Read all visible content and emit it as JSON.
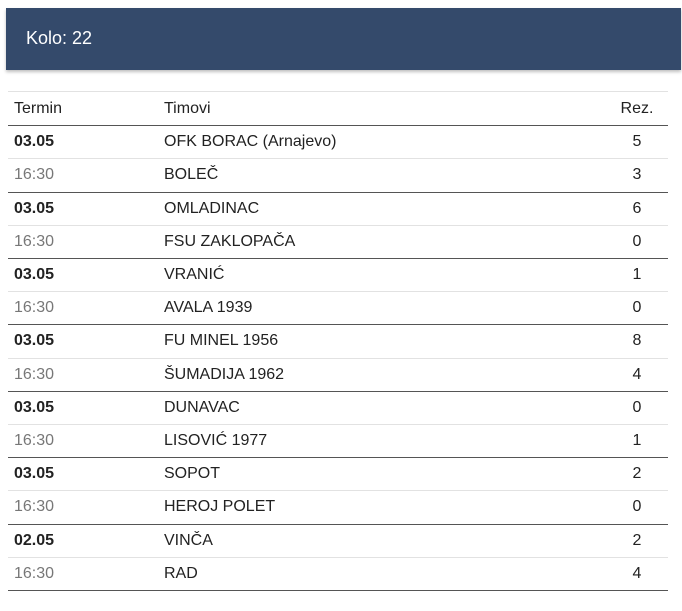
{
  "header": {
    "title": "Kolo: 22"
  },
  "table": {
    "headers": [
      "Termin",
      "Timovi",
      "Rez."
    ],
    "matches": [
      {
        "date": "03.05",
        "time": "16:30",
        "home": "OFK BORAC (Arnajevo)",
        "away": "BOLEČ",
        "home_score": 5,
        "away_score": 3
      },
      {
        "date": "03.05",
        "time": "16:30",
        "home": "OMLADINAC",
        "away": "FSU ZAKLOPAČA",
        "home_score": 6,
        "away_score": 0
      },
      {
        "date": "03.05",
        "time": "16:30",
        "home": "VRANIĆ",
        "away": "AVALA 1939",
        "home_score": 1,
        "away_score": 0
      },
      {
        "date": "03.05",
        "time": "16:30",
        "home": "FU MINEL 1956",
        "away": "ŠUMADIJA 1962",
        "home_score": 8,
        "away_score": 4
      },
      {
        "date": "03.05",
        "time": "16:30",
        "home": "DUNAVAC",
        "away": "LISOVIĆ 1977",
        "home_score": 0,
        "away_score": 1
      },
      {
        "date": "03.05",
        "time": "16:30",
        "home": "SOPOT",
        "away": "HEROJ POLET",
        "home_score": 2,
        "away_score": 0
      },
      {
        "date": "02.05",
        "time": "16:30",
        "home": "VINČA",
        "away": "RAD",
        "home_score": 2,
        "away_score": 4
      }
    ]
  }
}
